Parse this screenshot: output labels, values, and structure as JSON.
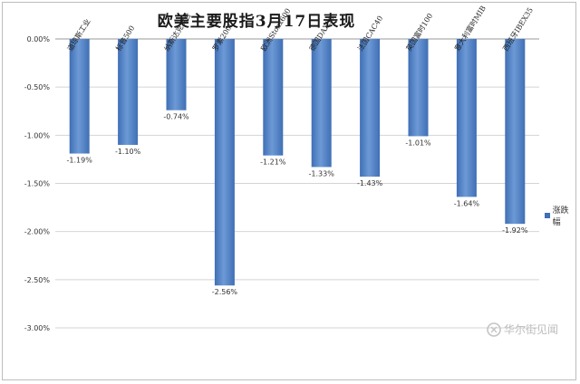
{
  "chart_data": {
    "type": "bar",
    "title": "欧美主要股指3月17日表现",
    "categories": [
      "道琼斯工业",
      "标普500",
      "纳斯达克综合",
      "罗素2000",
      "欧洲Stoxx600",
      "德国DAX30",
      "法国CAC40",
      "英国富时100",
      "意大利富时MIB",
      "西班牙IBEX35"
    ],
    "series": [
      {
        "name": "涨跌幅",
        "values": [
          -1.19,
          -1.1,
          -0.74,
          -2.56,
          -1.21,
          -1.33,
          -1.43,
          -1.01,
          -1.64,
          -1.92
        ]
      }
    ],
    "value_labels": [
      "-1.19%",
      "-1.10%",
      "-0.74%",
      "-2.56%",
      "-1.21%",
      "-1.33%",
      "-1.43%",
      "-1.01%",
      "-1.64%",
      "-1.92%"
    ],
    "yticks": [
      0,
      -0.5,
      -1.0,
      -1.5,
      -2.0,
      -2.5,
      -3.0
    ],
    "ytick_labels": [
      "0.00%",
      "-0.50%",
      "-1.00%",
      "-1.50%",
      "-2.00%",
      "-2.50%",
      "-3.00%"
    ],
    "ylim": [
      -3.0,
      0
    ],
    "xlabel": "",
    "ylabel": "",
    "grid": "horizontal",
    "legend_position": "right",
    "bar_color": "#3f6fb5",
    "bar_color_light": "#6d9ad6"
  },
  "watermark": {
    "text": "华尔街见闻",
    "icon": "logo-icon"
  }
}
